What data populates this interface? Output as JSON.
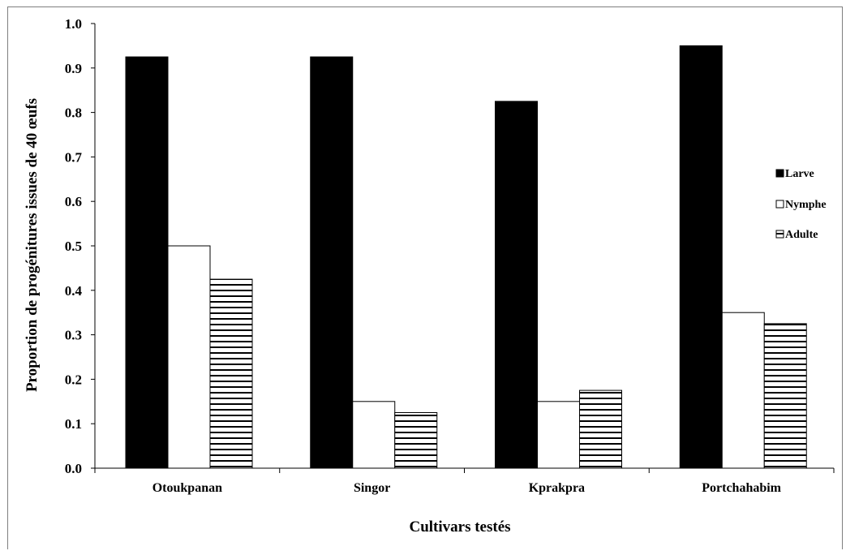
{
  "chart_data": {
    "type": "bar",
    "categories": [
      "Otoukpanan",
      "Singor",
      "Kprakpra",
      "Portchahabim"
    ],
    "series": [
      {
        "name": "Larve",
        "values": [
          0.925,
          0.925,
          0.825,
          0.95
        ],
        "fill": "solid-black"
      },
      {
        "name": "Nymphe",
        "values": [
          0.5,
          0.15,
          0.15,
          0.35
        ],
        "fill": "white"
      },
      {
        "name": "Adulte",
        "values": [
          0.425,
          0.125,
          0.175,
          0.325
        ],
        "fill": "horizontal-stripes"
      }
    ],
    "xlabel": "Cultivars testés",
    "ylabel": "Proportion de progénitures issues de 40 œufs",
    "ylim": [
      0,
      1.0
    ],
    "yticks": [
      "0.0",
      "0.1",
      "0.2",
      "0.3",
      "0.4",
      "0.5",
      "0.6",
      "0.7",
      "0.8",
      "0.9",
      "1.0"
    ],
    "grid": false,
    "legend_position": "right"
  }
}
